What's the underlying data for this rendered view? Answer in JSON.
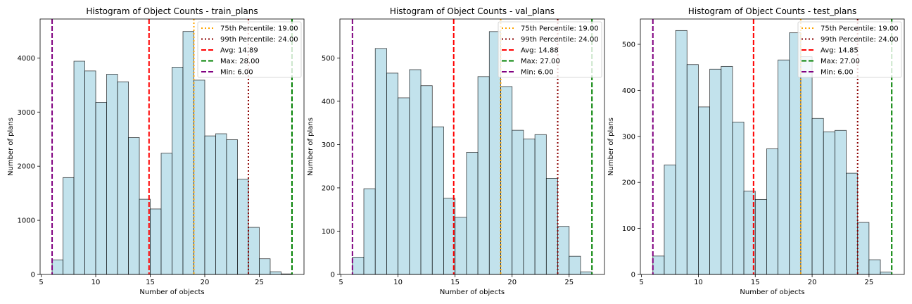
{
  "colors": {
    "bar_fill": "#add8e6",
    "bar_edge": "#000000",
    "p75": "#ffa500",
    "p99": "#8b0000",
    "avg": "#ff0000",
    "max": "#008000",
    "min": "#800080"
  },
  "chart_data": [
    {
      "type": "bar",
      "title": "Histogram of Object Counts - train_plans",
      "xlabel": "Number of objects",
      "ylabel": "Number of plans",
      "xlim": [
        4.9,
        29.1
      ],
      "ylim": [
        0,
        4720
      ],
      "xticks": [
        5,
        10,
        15,
        20,
        25
      ],
      "yticks": [
        0,
        1000,
        2000,
        3000,
        4000
      ],
      "grid": false,
      "legend_position": "top-right",
      "bin_edges": [
        6,
        7,
        8,
        9,
        10,
        11,
        12,
        13,
        14,
        15,
        16,
        17,
        18,
        19,
        20,
        21,
        22,
        23,
        24,
        25,
        26,
        27,
        28
      ],
      "values": [
        270,
        1790,
        3940,
        3760,
        3180,
        3700,
        3560,
        2530,
        1390,
        1210,
        2240,
        3830,
        4490,
        3590,
        2560,
        2600,
        2490,
        1760,
        870,
        290,
        50,
        10
      ],
      "reference_lines": [
        {
          "label": "75th Percentile: 19.00",
          "x": 19.0,
          "style": "dotted",
          "color_key": "p75"
        },
        {
          "label": "99th Percentile: 24.00",
          "x": 24.0,
          "style": "dotted",
          "color_key": "p99"
        },
        {
          "label": "Avg: 14.89",
          "x": 14.89,
          "style": "dashed",
          "color_key": "avg"
        },
        {
          "label": "Max: 28.00",
          "x": 28.0,
          "style": "dashed",
          "color_key": "max"
        },
        {
          "label": "Min: 6.00",
          "x": 6.0,
          "style": "dashed",
          "color_key": "min"
        }
      ]
    },
    {
      "type": "bar",
      "title": "Histogram of Object Counts - val_plans",
      "xlabel": "Number of objects",
      "ylabel": "Number of plans",
      "xlim": [
        4.9,
        28.1
      ],
      "ylim": [
        0,
        590
      ],
      "xticks": [
        5,
        10,
        15,
        20,
        25
      ],
      "yticks": [
        0,
        100,
        200,
        300,
        400,
        500
      ],
      "grid": false,
      "legend_position": "top-right",
      "bin_edges": [
        6,
        7,
        8,
        9,
        10,
        11,
        12,
        13,
        14,
        15,
        16,
        17,
        18,
        19,
        20,
        21,
        22,
        23,
        24,
        25,
        26,
        27
      ],
      "values": [
        40,
        198,
        522,
        465,
        408,
        473,
        436,
        341,
        176,
        132,
        282,
        457,
        561,
        434,
        333,
        313,
        323,
        222,
        111,
        42,
        6,
        1
      ],
      "reference_lines": [
        {
          "label": "75th Percentile: 19.00",
          "x": 19.0,
          "style": "dotted",
          "color_key": "p75"
        },
        {
          "label": "99th Percentile: 24.00",
          "x": 24.0,
          "style": "dotted",
          "color_key": "p99"
        },
        {
          "label": "Avg: 14.88",
          "x": 14.88,
          "style": "dashed",
          "color_key": "avg"
        },
        {
          "label": "Max: 27.00",
          "x": 27.0,
          "style": "dashed",
          "color_key": "max"
        },
        {
          "label": "Min: 6.00",
          "x": 6.0,
          "style": "dashed",
          "color_key": "min"
        }
      ]
    },
    {
      "type": "bar",
      "title": "Histogram of Object Counts - test_plans",
      "xlabel": "Number of objects",
      "ylabel": "Number of plans",
      "xlim": [
        4.9,
        28.1
      ],
      "ylim": [
        0,
        555
      ],
      "xticks": [
        5,
        10,
        15,
        20,
        25
      ],
      "yticks": [
        0,
        100,
        200,
        300,
        400,
        500
      ],
      "grid": false,
      "legend_position": "top-right",
      "bin_edges": [
        6,
        7,
        8,
        9,
        10,
        11,
        12,
        13,
        14,
        15,
        16,
        17,
        18,
        19,
        20,
        21,
        22,
        23,
        24,
        25,
        26,
        27
      ],
      "values": [
        40,
        238,
        530,
        456,
        364,
        446,
        452,
        331,
        181,
        163,
        273,
        466,
        525,
        473,
        339,
        310,
        313,
        220,
        113,
        32,
        5,
        1
      ],
      "reference_lines": [
        {
          "label": "75th Percentile: 19.00",
          "x": 19.0,
          "style": "dotted",
          "color_key": "p75"
        },
        {
          "label": "99th Percentile: 24.00",
          "x": 24.0,
          "style": "dotted",
          "color_key": "p99"
        },
        {
          "label": "Avg: 14.85",
          "x": 14.85,
          "style": "dashed",
          "color_key": "avg"
        },
        {
          "label": "Max: 27.00",
          "x": 27.0,
          "style": "dashed",
          "color_key": "max"
        },
        {
          "label": "Min: 6.00",
          "x": 6.0,
          "style": "dashed",
          "color_key": "min"
        }
      ]
    }
  ]
}
